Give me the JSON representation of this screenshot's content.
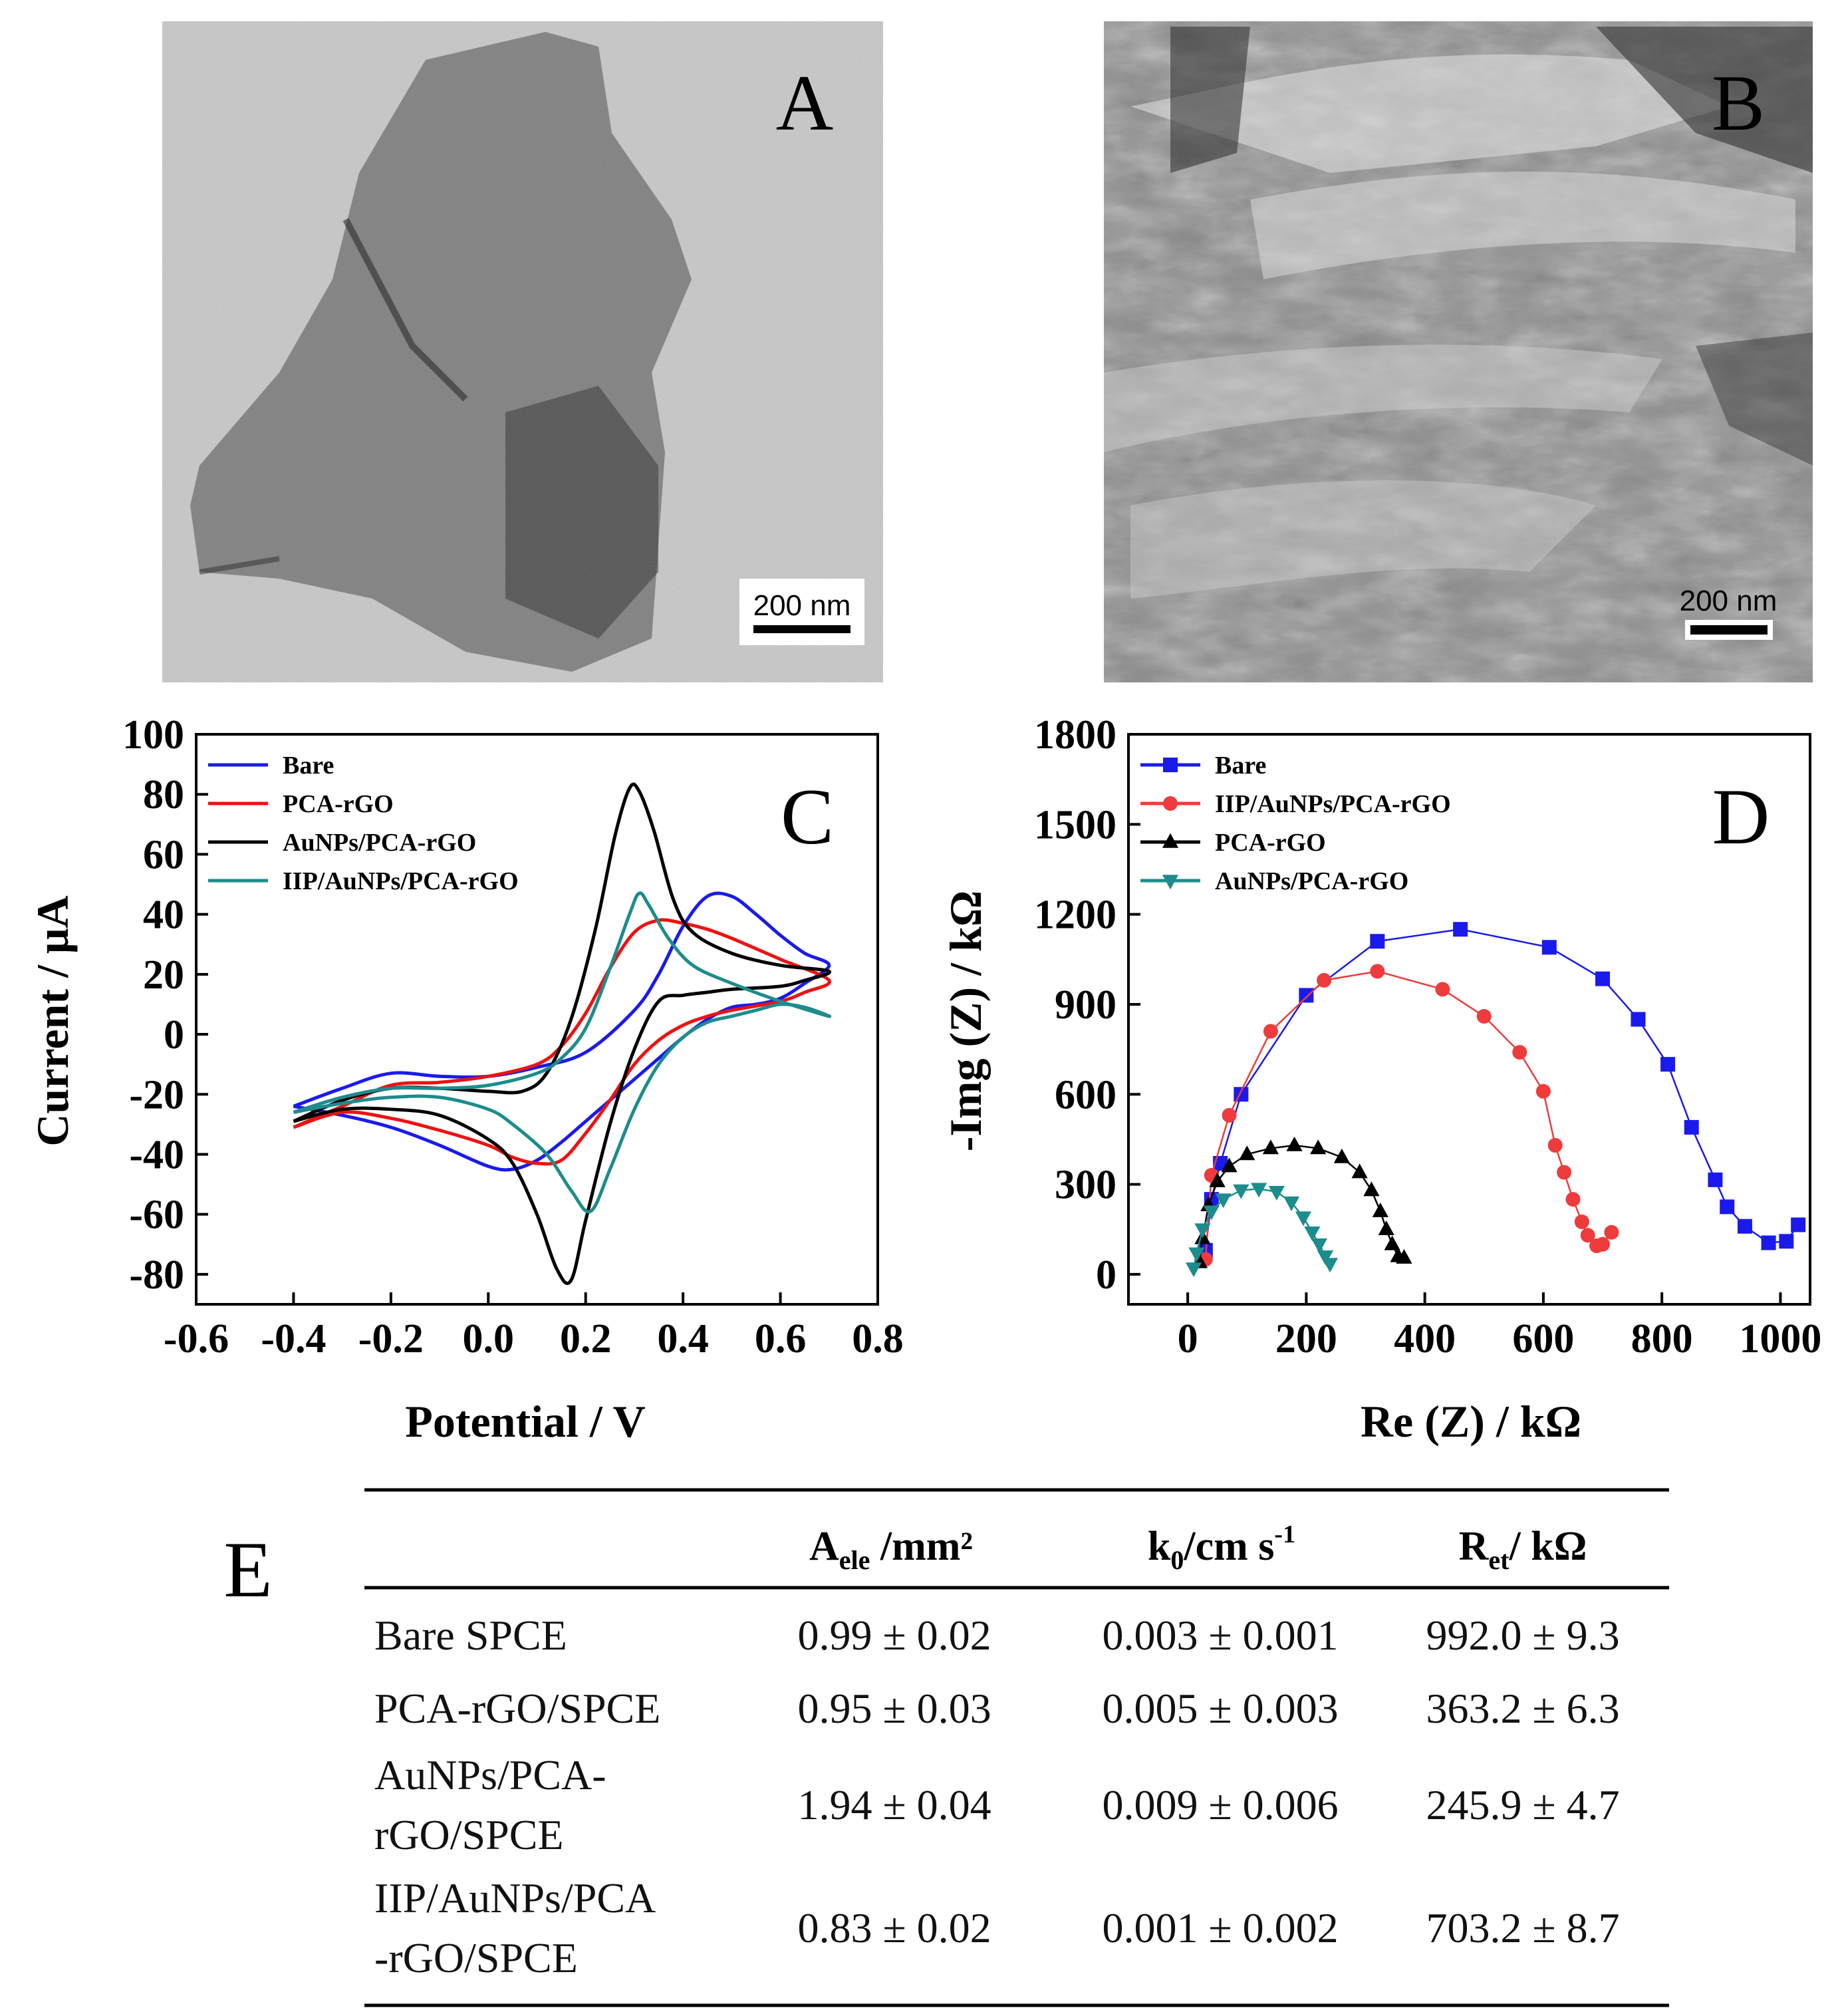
{
  "panels": {
    "A": {
      "label": "A",
      "scale_bar": "200 nm",
      "kind": "TEM micrograph"
    },
    "B": {
      "label": "B",
      "scale_bar": "200 nm",
      "kind": "SEM micrograph"
    },
    "C": {
      "label": "C"
    },
    "D": {
      "label": "D"
    },
    "E": {
      "label": "E"
    }
  },
  "chart_data": [
    {
      "type": "line",
      "panel": "C",
      "xlabel": "Potential / V",
      "ylabel": "Current / μA",
      "xlim": [
        -0.6,
        0.8
      ],
      "ylim": [
        -90,
        100
      ],
      "xticks": [
        -0.6,
        -0.4,
        -0.2,
        0.0,
        0.2,
        0.4,
        0.6,
        0.8
      ],
      "xtick_labels": [
        "-0.6",
        "-0.4",
        "-0.2",
        "0.0",
        "0.2",
        "0.4",
        "0.6",
        "0.8"
      ],
      "yticks": [
        -80,
        -60,
        -40,
        -20,
        0,
        20,
        40,
        60,
        80,
        100
      ],
      "ytick_labels": [
        "-80",
        "-60",
        "-40",
        "-20",
        "0",
        "20",
        "40",
        "60",
        "80",
        "100"
      ],
      "legend_position": "top-left",
      "series": [
        {
          "name": "Bare",
          "color": "#1a1aee",
          "points": [
            [
              -0.4,
              -24
            ],
            [
              -0.3,
              -18
            ],
            [
              -0.2,
              -13
            ],
            [
              -0.1,
              -14
            ],
            [
              0.0,
              -14
            ],
            [
              0.1,
              -11
            ],
            [
              0.2,
              -6
            ],
            [
              0.3,
              8
            ],
            [
              0.35,
              20
            ],
            [
              0.4,
              36
            ],
            [
              0.45,
              46
            ],
            [
              0.5,
              46
            ],
            [
              0.55,
              40
            ],
            [
              0.6,
              33
            ],
            [
              0.65,
              27
            ],
            [
              0.7,
              23
            ],
            [
              0.65,
              17
            ],
            [
              0.6,
              12
            ],
            [
              0.55,
              10
            ],
            [
              0.5,
              9
            ],
            [
              0.45,
              5
            ],
            [
              0.4,
              -1
            ],
            [
              0.35,
              -8
            ],
            [
              0.3,
              -15
            ],
            [
              0.25,
              -22
            ],
            [
              0.2,
              -29
            ],
            [
              0.15,
              -36
            ],
            [
              0.1,
              -42
            ],
            [
              0.05,
              -45
            ],
            [
              0.0,
              -44
            ],
            [
              -0.1,
              -37
            ],
            [
              -0.2,
              -31
            ],
            [
              -0.3,
              -27
            ],
            [
              -0.4,
              -24
            ]
          ]
        },
        {
          "name": "PCA-rGO",
          "color": "#ee1111",
          "points": [
            [
              -0.4,
              -31
            ],
            [
              -0.3,
              -24
            ],
            [
              -0.2,
              -17
            ],
            [
              -0.1,
              -16
            ],
            [
              0.0,
              -14
            ],
            [
              0.1,
              -10
            ],
            [
              0.15,
              -4
            ],
            [
              0.2,
              7
            ],
            [
              0.25,
              22
            ],
            [
              0.3,
              34
            ],
            [
              0.35,
              38
            ],
            [
              0.4,
              37
            ],
            [
              0.45,
              35
            ],
            [
              0.5,
              32
            ],
            [
              0.6,
              25
            ],
            [
              0.7,
              18
            ],
            [
              0.65,
              14
            ],
            [
              0.6,
              11
            ],
            [
              0.5,
              8
            ],
            [
              0.45,
              6
            ],
            [
              0.4,
              3
            ],
            [
              0.35,
              -2
            ],
            [
              0.3,
              -10
            ],
            [
              0.25,
              -22
            ],
            [
              0.2,
              -33
            ],
            [
              0.15,
              -42
            ],
            [
              0.1,
              -43
            ],
            [
              0.05,
              -41
            ],
            [
              0.0,
              -37
            ],
            [
              -0.1,
              -32
            ],
            [
              -0.2,
              -28
            ],
            [
              -0.3,
              -26
            ],
            [
              -0.4,
              -31
            ]
          ]
        },
        {
          "name": "AuNPs/PCA-rGO",
          "color": "#000000",
          "points": [
            [
              -0.4,
              -29
            ],
            [
              -0.3,
              -22
            ],
            [
              -0.2,
              -18
            ],
            [
              -0.1,
              -18
            ],
            [
              0.0,
              -19
            ],
            [
              0.07,
              -19
            ],
            [
              0.12,
              -13
            ],
            [
              0.17,
              5
            ],
            [
              0.22,
              35
            ],
            [
              0.26,
              66
            ],
            [
              0.29,
              82
            ],
            [
              0.31,
              81
            ],
            [
              0.34,
              68
            ],
            [
              0.38,
              45
            ],
            [
              0.42,
              34
            ],
            [
              0.5,
              27
            ],
            [
              0.6,
              23
            ],
            [
              0.7,
              21
            ],
            [
              0.65,
              18
            ],
            [
              0.6,
              16
            ],
            [
              0.5,
              15
            ],
            [
              0.45,
              14
            ],
            [
              0.4,
              13
            ],
            [
              0.35,
              11
            ],
            [
              0.3,
              -5
            ],
            [
              0.25,
              -30
            ],
            [
              0.2,
              -62
            ],
            [
              0.17,
              -82
            ],
            [
              0.14,
              -78
            ],
            [
              0.1,
              -60
            ],
            [
              0.05,
              -43
            ],
            [
              0.0,
              -35
            ],
            [
              -0.1,
              -27
            ],
            [
              -0.2,
              -25
            ],
            [
              -0.3,
              -25
            ],
            [
              -0.4,
              -29
            ]
          ]
        },
        {
          "name": "IIP/AuNPs/PCA-rGO",
          "color": "#1c8c8c",
          "points": [
            [
              -0.4,
              -26
            ],
            [
              -0.3,
              -21
            ],
            [
              -0.2,
              -18
            ],
            [
              -0.1,
              -18
            ],
            [
              0.0,
              -17
            ],
            [
              0.1,
              -13
            ],
            [
              0.15,
              -8
            ],
            [
              0.2,
              2
            ],
            [
              0.25,
              22
            ],
            [
              0.29,
              40
            ],
            [
              0.31,
              47
            ],
            [
              0.33,
              43
            ],
            [
              0.37,
              32
            ],
            [
              0.42,
              23
            ],
            [
              0.5,
              17
            ],
            [
              0.6,
              11
            ],
            [
              0.7,
              6
            ],
            [
              0.65,
              9
            ],
            [
              0.6,
              10
            ],
            [
              0.55,
              8
            ],
            [
              0.5,
              6
            ],
            [
              0.45,
              4
            ],
            [
              0.4,
              -1
            ],
            [
              0.35,
              -10
            ],
            [
              0.3,
              -25
            ],
            [
              0.25,
              -45
            ],
            [
              0.21,
              -59
            ],
            [
              0.17,
              -52
            ],
            [
              0.12,
              -40
            ],
            [
              0.05,
              -30
            ],
            [
              0.0,
              -25
            ],
            [
              -0.1,
              -21
            ],
            [
              -0.2,
              -21
            ],
            [
              -0.3,
              -23
            ],
            [
              -0.4,
              -26
            ]
          ]
        }
      ]
    },
    {
      "type": "scatter",
      "panel": "D",
      "xlabel": "Re (Z) / kΩ",
      "ylabel": "-Img (Z) / kΩ",
      "xlim": [
        -100,
        1050
      ],
      "ylim": [
        -100,
        1800
      ],
      "xticks": [
        0,
        200,
        400,
        600,
        800,
        1000
      ],
      "xtick_labels": [
        "0",
        "200",
        "400",
        "600",
        "800",
        "1000"
      ],
      "yticks": [
        0,
        300,
        600,
        900,
        1200,
        1500,
        1800
      ],
      "ytick_labels": [
        "0",
        "300",
        "600",
        "900",
        "1200",
        "1500",
        "1800"
      ],
      "legend_position": "top-left",
      "series": [
        {
          "name": "Bare",
          "color": "#1a1aee",
          "marker": "square",
          "points": [
            [
              30,
              80
            ],
            [
              40,
              250
            ],
            [
              55,
              370
            ],
            [
              90,
              600
            ],
            [
              200,
              930
            ],
            [
              320,
              1110
            ],
            [
              460,
              1150
            ],
            [
              610,
              1090
            ],
            [
              700,
              985
            ],
            [
              760,
              850
            ],
            [
              810,
              700
            ],
            [
              850,
              490
            ],
            [
              890,
              315
            ],
            [
              910,
              225
            ],
            [
              940,
              160
            ],
            [
              980,
              105
            ],
            [
              1010,
              110
            ],
            [
              1030,
              165
            ]
          ]
        },
        {
          "name": "IIP/AuNPs/PCA-rGO",
          "color": "#ee3b3b",
          "marker": "circle",
          "points": [
            [
              30,
              50
            ],
            [
              40,
              330
            ],
            [
              70,
              530
            ],
            [
              140,
              810
            ],
            [
              230,
              980
            ],
            [
              320,
              1010
            ],
            [
              430,
              950
            ],
            [
              500,
              860
            ],
            [
              560,
              740
            ],
            [
              600,
              610
            ],
            [
              620,
              430
            ],
            [
              635,
              340
            ],
            [
              650,
              250
            ],
            [
              665,
              175
            ],
            [
              675,
              130
            ],
            [
              690,
              95
            ],
            [
              700,
              100
            ],
            [
              715,
              140
            ]
          ]
        },
        {
          "name": "PCA-rGO",
          "color": "#000000",
          "marker": "triangle",
          "points": [
            [
              20,
              40
            ],
            [
              25,
              120
            ],
            [
              35,
              230
            ],
            [
              50,
              310
            ],
            [
              70,
              360
            ],
            [
              100,
              400
            ],
            [
              140,
              420
            ],
            [
              180,
              430
            ],
            [
              220,
              420
            ],
            [
              260,
              390
            ],
            [
              290,
              340
            ],
            [
              310,
              280
            ],
            [
              325,
              210
            ],
            [
              335,
              150
            ],
            [
              345,
              100
            ],
            [
              355,
              60
            ],
            [
              365,
              55
            ]
          ]
        },
        {
          "name": "AuNPs/PCA-rGO",
          "color": "#1c8c8c",
          "marker": "triangle-down",
          "points": [
            [
              10,
              20
            ],
            [
              15,
              70
            ],
            [
              25,
              150
            ],
            [
              40,
              210
            ],
            [
              60,
              250
            ],
            [
              90,
              280
            ],
            [
              120,
              285
            ],
            [
              150,
              275
            ],
            [
              175,
              240
            ],
            [
              195,
              190
            ],
            [
              210,
              140
            ],
            [
              222,
              100
            ],
            [
              232,
              60
            ],
            [
              240,
              35
            ]
          ]
        }
      ]
    },
    {
      "type": "table",
      "panel": "E",
      "columns": [
        {
          "main": "A",
          "sub": "ele",
          "rest": " /mm²"
        },
        {
          "main": "k",
          "sub": "0",
          "rest": "/cm s"
        },
        {
          "main": "R",
          "sub": "et",
          "rest": "/ kΩ"
        }
      ],
      "column_sup": "-1",
      "rows": [
        {
          "label_lines": [
            "Bare SPCE"
          ],
          "values": [
            "0.99 ± 0.02",
            "0.003 ± 0.001",
            "992.0 ± 9.3"
          ]
        },
        {
          "label_lines": [
            "PCA-rGO/SPCE"
          ],
          "values": [
            "0.95 ± 0.03",
            "0.005 ± 0.003",
            "363.2 ± 6.3"
          ]
        },
        {
          "label_lines": [
            "AuNPs/PCA-",
            "rGO/SPCE"
          ],
          "values": [
            "1.94 ± 0.04",
            "0.009 ± 0.006",
            "245.9 ± 4.7"
          ]
        },
        {
          "label_lines": [
            "IIP/AuNPs/PCA",
            "-rGO/SPCE"
          ],
          "values": [
            "0.83 ± 0.02",
            "0.001 ± 0.002",
            "703.2 ± 8.7"
          ]
        }
      ]
    }
  ]
}
